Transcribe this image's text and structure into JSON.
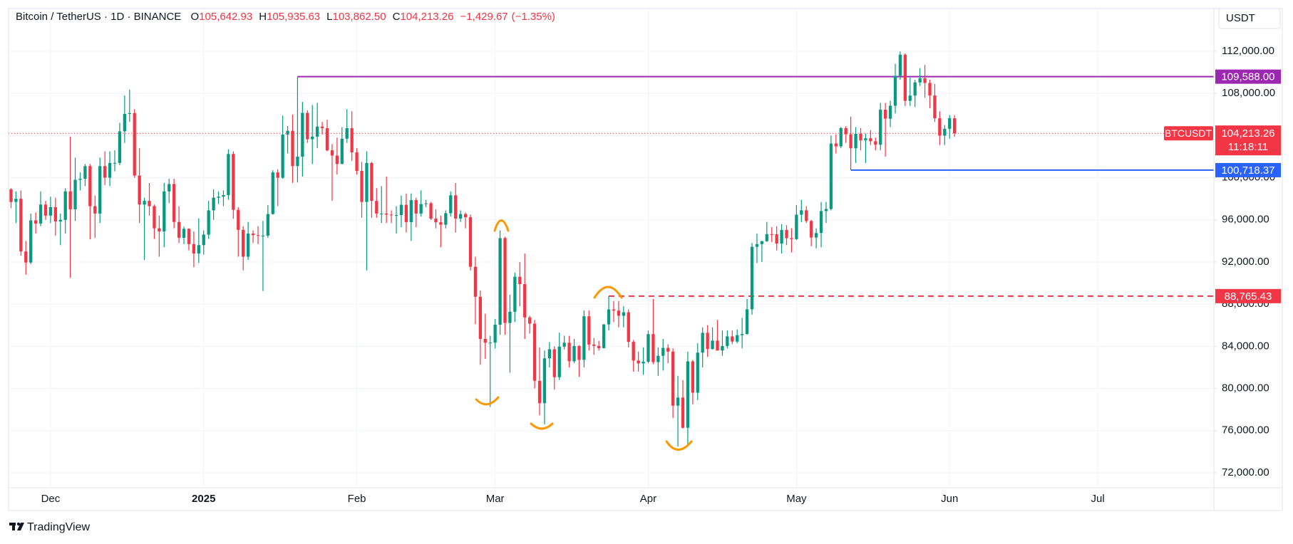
{
  "chart_data": {
    "type": "candlestick",
    "title": "Bitcoin / TetherUS · 1D · BINANCE",
    "ohlc": [
      {
        "key": "O",
        "value": 105642.93,
        "label": "105,642.93"
      },
      {
        "key": "H",
        "value": 105935.63,
        "label": "105,935.63"
      },
      {
        "key": "L",
        "value": 103862.5,
        "label": "103,862.50"
      },
      {
        "key": "C",
        "value": 104213.26,
        "label": "104,213.26"
      }
    ],
    "change": {
      "value": -1429.67,
      "label": "−1,429.67",
      "percent": -1.35,
      "percent_label": "(−1.35%)"
    },
    "currency": "USDT",
    "up_color": "#089981",
    "down_color": "#f23645",
    "grid": true,
    "open": [
      98900,
      97700,
      98000,
      93000,
      91950,
      95950,
      95650,
      97450,
      96400,
      97200,
      95850,
      96000,
      98700,
      97000,
      99800,
      99900,
      101100,
      97300,
      96600,
      101100,
      100000,
      101400,
      101400,
      104400,
      106050,
      106130,
      100200,
      97450,
      97800,
      97300,
      95200,
      94900,
      98700,
      99400,
      95800,
      94300,
      95150,
      93700,
      92800,
      93600,
      94600,
      96900,
      98100,
      98200,
      98350,
      102250,
      96950,
      95050,
      92500,
      94700,
      94550,
      94500,
      94500,
      96550,
      100500,
      99990,
      104100,
      104450,
      101100,
      102000,
      106150,
      103650,
      103900,
      104850,
      104700,
      102600,
      102100,
      101300,
      103700,
      104700,
      102400,
      100650,
      97700,
      101400,
      97800,
      96600,
      96600,
      96500,
      96450,
      96450,
      97430,
      95780,
      97870,
      96600,
      97500,
      97570,
      96120,
      95770,
      95540,
      96630,
      98330,
      96120,
      96550,
      96250,
      91550,
      88700,
      84700,
      84350,
      84350,
      86050,
      94270,
      86220,
      87280,
      90600,
      89900,
      86740,
      86150,
      80730,
      78600,
      82860,
      83720,
      81070,
      83970,
      84340,
      82580,
      84030,
      82720,
      86850,
      84170,
      84040,
      83830,
      86080,
      87500,
      87390,
      86900,
      87230,
      84420,
      82650,
      82380,
      82540,
      85160,
      82500,
      83100,
      83850,
      83500,
      78370,
      79140,
      76270,
      82570,
      79600,
      83400,
      85280,
      83740,
      84540,
      83600,
      84030,
      84940,
      84450,
      85060,
      85170,
      87510,
      93440,
      93700,
      93980,
      94640,
      94630,
      93750,
      95040,
      94260,
      94170,
      96490,
      96910,
      95890,
      94320,
      94750,
      96830,
      97030,
      103240,
      102970,
      104700,
      104120,
      102790,
      104170,
      103540,
      103740,
      103460,
      103130,
      106450,
      105600,
      106830,
      109670,
      111670,
      107290,
      107790,
      109040,
      109440,
      108990,
      107800,
      105640,
      103990,
      104640,
      105642.93
    ],
    "high": [
      99000,
      98700,
      98800,
      94000,
      96600,
      96700,
      98700,
      97800,
      98200,
      98100,
      96600,
      99000,
      103900,
      101900,
      100500,
      101300,
      101300,
      98300,
      101900,
      102500,
      102500,
      102600,
      105200,
      107800,
      108350,
      106500,
      102800,
      98100,
      99500,
      97450,
      96400,
      99500,
      99900,
      99900,
      97300,
      95350,
      95200,
      94900,
      96150,
      95000,
      97800,
      98900,
      98700,
      98800,
      102700,
      102500,
      97200,
      95400,
      95800,
      95000,
      95400,
      95900,
      97400,
      100700,
      100800,
      105900,
      104900,
      106000,
      109588,
      107200,
      106400,
      106900,
      107100,
      105300,
      105500,
      103200,
      103800,
      104800,
      106500,
      106300,
      102800,
      101500,
      102500,
      101500,
      99000,
      99200,
      100100,
      96900,
      97300,
      98300,
      98500,
      98500,
      98100,
      98800,
      97900,
      97700,
      97000,
      96400,
      96900,
      98700,
      99500,
      96900,
      96700,
      96500,
      92500,
      89300,
      87100,
      85000,
      86600,
      95000,
      94400,
      88900,
      91000,
      92000,
      92800,
      86900,
      86500,
      83900,
      83600,
      84400,
      84000,
      85300,
      85000,
      85000,
      84700,
      84100,
      87400,
      87400,
      84800,
      84500,
      86100,
      88765.43,
      88300,
      88300,
      87800,
      87500,
      84600,
      83500,
      83900,
      85500,
      88500,
      83900,
      84700,
      84200,
      83800,
      81200,
      80800,
      83500,
      82700,
      84300,
      85800,
      86000,
      85800,
      86500,
      85500,
      85500,
      85500,
      85600,
      86700,
      88500,
      93800,
      94700,
      94000,
      95800,
      95300,
      95400,
      95600,
      95500,
      95200,
      97400,
      97900,
      97300,
      96000,
      95200,
      97700,
      97700,
      104000,
      104100,
      104800,
      104900,
      105800,
      104800,
      104700,
      104200,
      104500,
      103800,
      107100,
      107100,
      107300,
      110800,
      111980,
      111800,
      109500,
      109300,
      110400,
      110700,
      109300,
      108900,
      106300,
      105000,
      105950,
      105935.63
    ],
    "low": [
      97100,
      95700,
      92600,
      90800,
      91800,
      94700,
      95400,
      96000,
      95700,
      94500,
      93600,
      94700,
      90500,
      95900,
      98800,
      99200,
      94150,
      94300,
      95700,
      99300,
      99200,
      100600,
      101200,
      103300,
      105300,
      100000,
      95700,
      92200,
      96400,
      94200,
      92500,
      93400,
      97600,
      95200,
      93800,
      93700,
      93100,
      91500,
      91900,
      92700,
      94200,
      96000,
      97500,
      97300,
      97900,
      96100,
      92500,
      91200,
      92200,
      93800,
      93700,
      89250,
      94300,
      96500,
      97300,
      99900,
      102300,
      99500,
      99550,
      100100,
      103300,
      101300,
      102800,
      104100,
      102500,
      97800,
      100300,
      101300,
      103300,
      101600,
      100300,
      96200,
      91200,
      96200,
      96200,
      95700,
      95700,
      95700,
      94700,
      95300,
      94800,
      94000,
      95300,
      96300,
      97200,
      96000,
      95200,
      93400,
      95200,
      96300,
      94800,
      95800,
      95200,
      91200,
      86100,
      82250,
      82800,
      78250,
      83800,
      85100,
      85100,
      81500,
      86300,
      87800,
      84700,
      85200,
      80000,
      77450,
      76600,
      82000,
      79900,
      80800,
      83700,
      82000,
      82400,
      81100,
      82000,
      83600,
      83200,
      83600,
      83800,
      85500,
      86300,
      85800,
      85800,
      83900,
      81600,
      81600,
      81300,
      82400,
      82300,
      81200,
      81700,
      82400,
      77200,
      74500,
      76200,
      74600,
      78500,
      78900,
      82000,
      83000,
      83700,
      83600,
      83100,
      83800,
      84200,
      84300,
      83800,
      85100,
      87000,
      91900,
      92000,
      93900,
      93900,
      93100,
      92800,
      93600,
      92900,
      94100,
      95800,
      95700,
      93500,
      93300,
      93400,
      95700,
      96900,
      102300,
      102800,
      103300,
      100718.37,
      101400,
      102600,
      101400,
      103100,
      102600,
      102600,
      102000,
      104800,
      106100,
      109300,
      106800,
      106800,
      106700,
      108700,
      107600,
      106600,
      105300,
      103100,
      103100,
      103700,
      103862.5
    ],
    "close": [
      97700,
      98000,
      93000,
      91950,
      95950,
      95650,
      97450,
      96400,
      97200,
      95850,
      96000,
      98700,
      97000,
      99800,
      99900,
      101100,
      97300,
      96600,
      101100,
      100000,
      101400,
      101400,
      104400,
      106050,
      106130,
      100200,
      97450,
      97800,
      97300,
      95200,
      94900,
      98700,
      99400,
      95800,
      94300,
      95150,
      93700,
      92800,
      93600,
      94600,
      96900,
      98100,
      98200,
      98350,
      102250,
      96950,
      95050,
      92500,
      94700,
      94550,
      94500,
      94500,
      96550,
      100500,
      99990,
      104100,
      104450,
      101100,
      102000,
      106150,
      103650,
      103900,
      104850,
      104700,
      102600,
      102100,
      101300,
      103700,
      104700,
      102400,
      100650,
      97700,
      101400,
      97800,
      96600,
      96600,
      96500,
      96450,
      96450,
      97430,
      95780,
      97870,
      96600,
      97500,
      97570,
      96120,
      95770,
      95540,
      96630,
      98330,
      96120,
      96550,
      96250,
      91550,
      88700,
      84700,
      84350,
      84350,
      86050,
      94270,
      86220,
      87280,
      90600,
      89900,
      86740,
      86150,
      80730,
      78600,
      82860,
      83720,
      81070,
      83970,
      84340,
      82580,
      84030,
      82720,
      86850,
      84170,
      84040,
      83830,
      86080,
      87500,
      87390,
      86900,
      87230,
      84420,
      82650,
      82380,
      82540,
      85160,
      82500,
      83100,
      83850,
      83500,
      78370,
      79140,
      76270,
      82570,
      79600,
      83400,
      85280,
      83740,
      84540,
      83600,
      84030,
      84940,
      84450,
      85060,
      85170,
      87510,
      93440,
      93700,
      93980,
      94640,
      94630,
      93750,
      95040,
      94260,
      94170,
      96490,
      96910,
      95890,
      94320,
      94750,
      96830,
      97030,
      103240,
      102970,
      104700,
      104120,
      102790,
      104170,
      103540,
      103740,
      103460,
      103130,
      106450,
      105600,
      106830,
      109670,
      111670,
      107290,
      107790,
      109040,
      109440,
      108990,
      107800,
      105640,
      103990,
      104640,
      105650,
      104213.26
    ],
    "xlim": [
      -0.5,
      243.5
    ],
    "xticks": [
      {
        "value": 8,
        "label": "Dec"
      },
      {
        "value": 39,
        "label": "2025"
      },
      {
        "value": 70,
        "label": "Feb"
      },
      {
        "value": 98,
        "label": "Mar"
      },
      {
        "value": 129,
        "label": "Apr"
      },
      {
        "value": 159,
        "label": "May"
      },
      {
        "value": 190,
        "label": "Jun"
      },
      {
        "value": 220,
        "label": "Jul"
      }
    ],
    "ylim": [
      70580,
      116050
    ],
    "yticks": [
      {
        "value": 72000,
        "label": "72,000.00"
      },
      {
        "value": 76000,
        "label": "76,000.00"
      },
      {
        "value": 80000,
        "label": "80,000.00"
      },
      {
        "value": 84000,
        "label": "84,000.00"
      },
      {
        "value": 88000,
        "label": "88,000.00"
      },
      {
        "value": 92000,
        "label": "92,000.00"
      },
      {
        "value": 96000,
        "label": "96,000.00"
      },
      {
        "value": 100000,
        "label": "100,000.00"
      },
      {
        "value": 104000,
        "label": "104,000.00"
      },
      {
        "value": 108000,
        "label": "108,000.00"
      },
      {
        "value": 112000,
        "label": "112,000.00"
      }
    ],
    "levels": [
      {
        "value": 109588,
        "label": "109,588.00",
        "color": "#9c27b0",
        "style": "solid"
      },
      {
        "value": 100718.37,
        "label": "100,718.37",
        "color": "#2962ff",
        "style": "solid"
      },
      {
        "value": 88765.43,
        "label": "88,765.43",
        "color": "#f23645",
        "style": "dashed"
      }
    ],
    "last": {
      "value": 104213.26,
      "label": "104,213.26",
      "symbol": "BTCUSDT",
      "countdown": "11:18:11",
      "color": "#f23645"
    }
  },
  "footer": {
    "brand": "TradingView"
  }
}
